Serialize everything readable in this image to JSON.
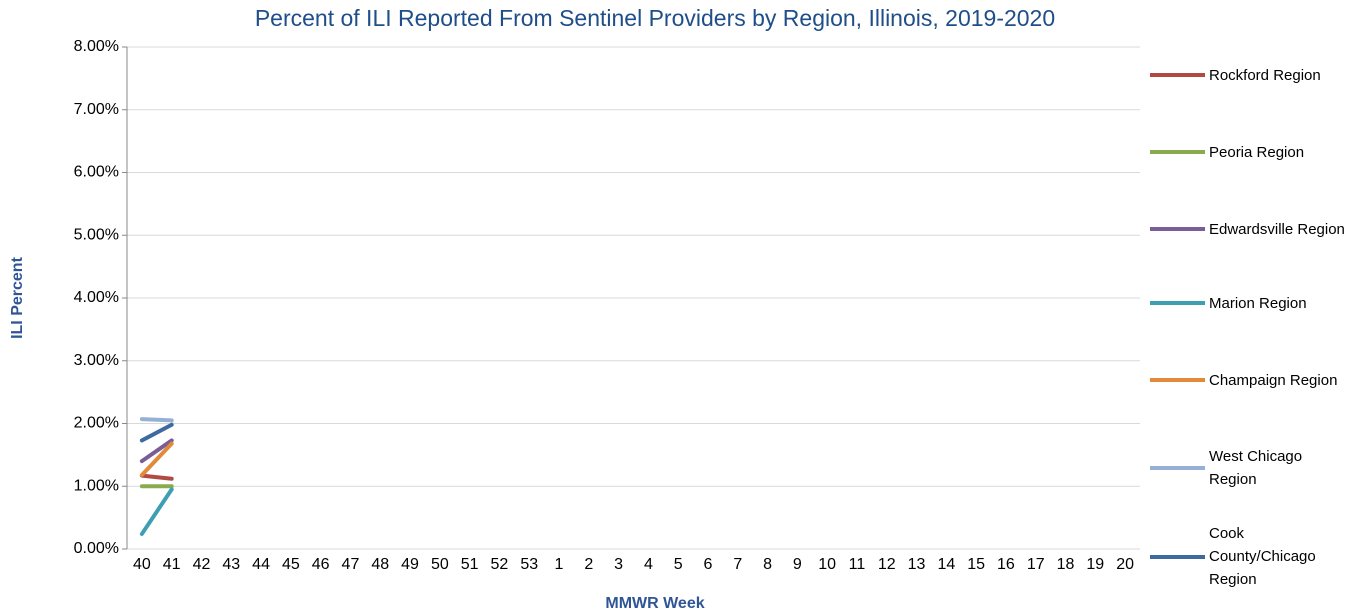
{
  "chart_data": {
    "type": "line",
    "title": "Percent of ILI Reported From Sentinel Providers by Region, Illinois, 2019-2020",
    "x_label": "MMWR Week",
    "y_label": "ILI Percent",
    "categories": [
      "40",
      "41",
      "42",
      "43",
      "44",
      "45",
      "46",
      "47",
      "48",
      "49",
      "50",
      "51",
      "52",
      "53",
      "1",
      "2",
      "3",
      "4",
      "5",
      "6",
      "7",
      "8",
      "9",
      "10",
      "11",
      "12",
      "13",
      "14",
      "15",
      "16",
      "17",
      "18",
      "19",
      "20"
    ],
    "ylim": [
      0,
      8
    ],
    "yticks": [
      {
        "value": 0,
        "label": "0.00%"
      },
      {
        "value": 1,
        "label": "1.00%"
      },
      {
        "value": 2,
        "label": "2.00%"
      },
      {
        "value": 3,
        "label": "3.00%"
      },
      {
        "value": 4,
        "label": "4.00%"
      },
      {
        "value": 5,
        "label": "5.00%"
      },
      {
        "value": 6,
        "label": "6.00%"
      },
      {
        "value": 7,
        "label": "7.00%"
      },
      {
        "value": 8,
        "label": "8.00%"
      }
    ],
    "grid": true,
    "legend": "right",
    "series": [
      {
        "name": "Rockford Region",
        "color": "#b04a45",
        "values": [
          1.17,
          1.12,
          null,
          null,
          null,
          null,
          null,
          null,
          null,
          null,
          null,
          null,
          null,
          null,
          null,
          null,
          null,
          null,
          null,
          null,
          null,
          null,
          null,
          null,
          null,
          null,
          null,
          null,
          null,
          null,
          null,
          null,
          null,
          null
        ]
      },
      {
        "name": "Peoria Region",
        "color": "#8aaa4e",
        "values": [
          1.0,
          1.0,
          null,
          null,
          null,
          null,
          null,
          null,
          null,
          null,
          null,
          null,
          null,
          null,
          null,
          null,
          null,
          null,
          null,
          null,
          null,
          null,
          null,
          null,
          null,
          null,
          null,
          null,
          null,
          null,
          null,
          null,
          null,
          null
        ]
      },
      {
        "name": "Edwardsville Region",
        "color": "#7a5c96",
        "values": [
          1.4,
          1.73,
          null,
          null,
          null,
          null,
          null,
          null,
          null,
          null,
          null,
          null,
          null,
          null,
          null,
          null,
          null,
          null,
          null,
          null,
          null,
          null,
          null,
          null,
          null,
          null,
          null,
          null,
          null,
          null,
          null,
          null,
          null,
          null
        ]
      },
      {
        "name": "Marion Region",
        "color": "#3e9fb3",
        "values": [
          0.24,
          0.95,
          null,
          null,
          null,
          null,
          null,
          null,
          null,
          null,
          null,
          null,
          null,
          null,
          null,
          null,
          null,
          null,
          null,
          null,
          null,
          null,
          null,
          null,
          null,
          null,
          null,
          null,
          null,
          null,
          null,
          null,
          null,
          null
        ]
      },
      {
        "name": "Champaign Region",
        "color": "#e28a3a",
        "values": [
          1.18,
          1.68,
          null,
          null,
          null,
          null,
          null,
          null,
          null,
          null,
          null,
          null,
          null,
          null,
          null,
          null,
          null,
          null,
          null,
          null,
          null,
          null,
          null,
          null,
          null,
          null,
          null,
          null,
          null,
          null,
          null,
          null,
          null,
          null
        ]
      },
      {
        "name": "West Chicago Region",
        "color": "#95b0d4",
        "values": [
          2.07,
          2.05,
          null,
          null,
          null,
          null,
          null,
          null,
          null,
          null,
          null,
          null,
          null,
          null,
          null,
          null,
          null,
          null,
          null,
          null,
          null,
          null,
          null,
          null,
          null,
          null,
          null,
          null,
          null,
          null,
          null,
          null,
          null,
          null
        ]
      },
      {
        "name": "Cook County/Chicago Region",
        "color": "#3e6aa0",
        "values": [
          1.73,
          1.98,
          null,
          null,
          null,
          null,
          null,
          null,
          null,
          null,
          null,
          null,
          null,
          null,
          null,
          null,
          null,
          null,
          null,
          null,
          null,
          null,
          null,
          null,
          null,
          null,
          null,
          null,
          null,
          null,
          null,
          null,
          null,
          null
        ]
      }
    ]
  }
}
